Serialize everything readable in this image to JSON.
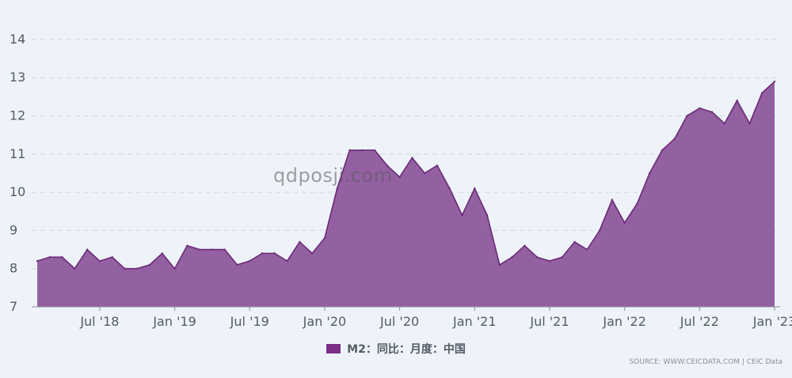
{
  "chart_data": {
    "type": "area",
    "title": "",
    "xlabel": "",
    "ylabel": "",
    "ylim": [
      7,
      14
    ],
    "yticks": [
      7,
      8,
      9,
      10,
      11,
      12,
      13,
      14
    ],
    "x_tick_labels": [
      "Jul '18",
      "Jan '19",
      "Jul '19",
      "Jan '20",
      "Jul '20",
      "Jan '21",
      "Jul '21",
      "Jan '22",
      "Jul '22",
      "Jan '23"
    ],
    "grid": "horizontal dashed",
    "x_start": "2018-02",
    "x_end": "2023-01",
    "series": [
      {
        "name": "M2：同比：月度：中国",
        "color": "#7b2f86",
        "values": [
          8.2,
          8.3,
          8.3,
          8.0,
          8.5,
          8.2,
          8.3,
          8.0,
          8.0,
          8.1,
          8.4,
          8.0,
          8.6,
          8.5,
          8.5,
          8.5,
          8.1,
          8.2,
          8.4,
          8.4,
          8.2,
          8.7,
          8.4,
          8.8,
          10.1,
          11.1,
          11.1,
          11.1,
          10.7,
          10.4,
          10.9,
          10.5,
          10.7,
          10.1,
          9.4,
          10.1,
          9.4,
          8.1,
          8.3,
          8.6,
          8.3,
          8.2,
          8.3,
          8.7,
          8.5,
          9.0,
          9.8,
          9.2,
          9.7,
          10.5,
          11.1,
          11.4,
          12.0,
          12.2,
          12.1,
          11.8,
          12.4,
          11.8,
          12.6,
          12.9
        ]
      }
    ],
    "legend_position": "bottom"
  },
  "watermark": "qdposji.com",
  "source": "SOURCE: WWW.CEICDATA.COM | CEIC Data"
}
